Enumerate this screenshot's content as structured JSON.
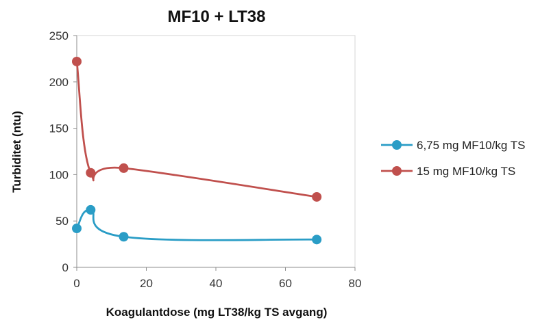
{
  "chart_data": {
    "type": "line",
    "title": "MF10 + LT38",
    "xlabel": "Koagulantdose  (mg LT38/kg TS avgang)",
    "ylabel": "Turbiditet (ntu)",
    "xlim": [
      0,
      80
    ],
    "ylim": [
      0,
      250
    ],
    "xticks": [
      0,
      20,
      40,
      60,
      80
    ],
    "yticks": [
      0,
      50,
      100,
      150,
      200,
      250
    ],
    "grid": false,
    "legend_position": "right",
    "series": [
      {
        "name": "6,75 mg MF10/kg TS",
        "color": "#2a9dc6",
        "x": [
          0,
          4,
          13.5,
          69
        ],
        "y": [
          42,
          62,
          33,
          30
        ]
      },
      {
        "name": "15 mg MF10/kg TS",
        "color": "#c0504d",
        "x": [
          0,
          4,
          13.5,
          69
        ],
        "y": [
          222,
          102,
          107,
          76
        ]
      }
    ]
  }
}
